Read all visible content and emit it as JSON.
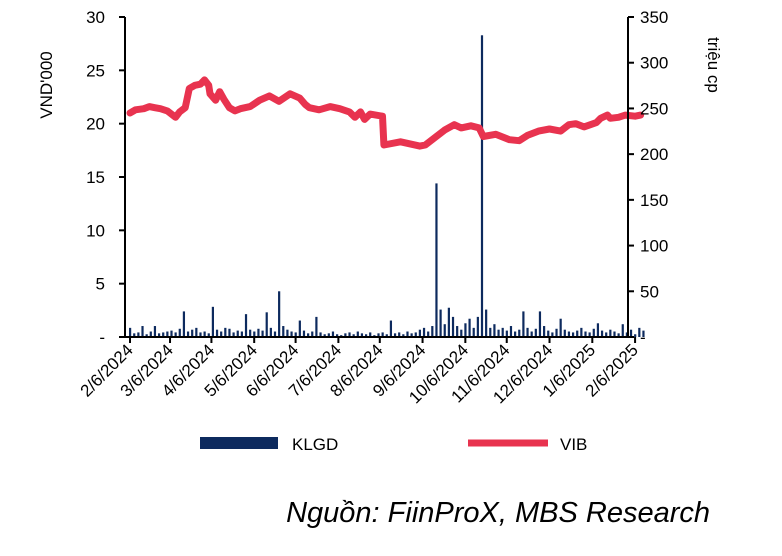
{
  "chart_data": {
    "type": "bar+line",
    "title": "",
    "source": "Nguồn: FiinProX, MBS Research",
    "x_start_date": "2/6/2024",
    "x_unit": "days since 2/6/2024",
    "xtick_days": [
      0,
      29,
      59,
      90,
      120,
      151,
      181,
      212,
      243,
      273,
      304,
      335,
      366
    ],
    "xtick_labels": [
      "2/6/2024",
      "3/6/2024",
      "4/6/2024",
      "5/6/2024",
      "6/6/2024",
      "7/6/2024",
      "8/6/2024",
      "9/6/2024",
      "10/6/2024",
      "11/6/2024",
      "12/6/2024",
      "1/6/2025",
      "2/6/2025"
    ],
    "xlim": [
      0,
      372
    ],
    "y_left": {
      "label": "VND'000",
      "lim": [
        0,
        30
      ],
      "ticks": [
        0,
        5,
        10,
        15,
        20,
        25,
        30
      ],
      "tick_labels": [
        "-",
        "5",
        "10",
        "15",
        "20",
        "25",
        "30"
      ]
    },
    "y_right": {
      "label": "triệu cp",
      "lim": [
        0,
        350
      ],
      "ticks": [
        0,
        50,
        100,
        150,
        200,
        250,
        300,
        350
      ],
      "tick_labels": [
        "-",
        "50",
        "100",
        "150",
        "200",
        "250",
        "300",
        "350"
      ]
    },
    "legend": {
      "placement": "bottom",
      "entries": [
        "KLGD",
        "VIB"
      ]
    },
    "series": [
      {
        "name": "KLGD",
        "type": "bar",
        "axis": "right",
        "color": "#0d2a5e",
        "x_step_days": 3,
        "values": [
          10,
          4,
          5,
          12,
          3,
          6,
          12,
          4,
          5,
          6,
          7,
          5,
          9,
          28,
          6,
          8,
          10,
          5,
          6,
          4,
          33,
          8,
          6,
          10,
          9,
          5,
          7,
          6,
          25,
          8,
          6,
          9,
          7,
          27,
          10,
          6,
          50,
          12,
          8,
          6,
          5,
          18,
          7,
          4,
          6,
          22,
          5,
          3,
          4,
          6,
          3,
          2,
          4,
          5,
          3,
          6,
          4,
          3,
          5,
          2,
          4,
          5,
          3,
          18,
          4,
          5,
          3,
          6,
          4,
          5,
          8,
          10,
          6,
          12,
          168,
          30,
          14,
          32,
          22,
          12,
          8,
          15,
          20,
          10,
          22,
          330,
          30,
          10,
          14,
          8,
          10,
          7,
          12,
          6,
          8,
          28,
          10,
          6,
          9,
          28,
          12,
          7,
          5,
          9,
          20,
          8,
          6,
          5,
          7,
          10,
          6,
          5,
          9,
          15,
          7,
          5,
          8,
          6,
          4,
          14,
          5,
          8,
          3,
          10,
          7
        ]
      },
      {
        "name": "VIB",
        "type": "line",
        "axis": "left",
        "color": "#e8334f",
        "points": [
          [
            0,
            21.0
          ],
          [
            4,
            21.3
          ],
          [
            10,
            21.4
          ],
          [
            14,
            21.6
          ],
          [
            18,
            21.5
          ],
          [
            22,
            21.4
          ],
          [
            27,
            21.2
          ],
          [
            33,
            20.6
          ],
          [
            36,
            21.1
          ],
          [
            40,
            21.5
          ],
          [
            43,
            23.3
          ],
          [
            47,
            23.6
          ],
          [
            51,
            23.7
          ],
          [
            54,
            24.1
          ],
          [
            57,
            23.6
          ],
          [
            58,
            22.8
          ],
          [
            62,
            22.2
          ],
          [
            65,
            23.0
          ],
          [
            68,
            22.3
          ],
          [
            72,
            21.5
          ],
          [
            76,
            21.2
          ],
          [
            80,
            21.4
          ],
          [
            87,
            21.6
          ],
          [
            94,
            22.2
          ],
          [
            101,
            22.6
          ],
          [
            108,
            22.1
          ],
          [
            116,
            22.8
          ],
          [
            123,
            22.4
          ],
          [
            127,
            21.8
          ],
          [
            130,
            21.5
          ],
          [
            137,
            21.3
          ],
          [
            145,
            21.6
          ],
          [
            152,
            21.4
          ],
          [
            159,
            21.1
          ],
          [
            163,
            20.6
          ],
          [
            167,
            21.1
          ],
          [
            170,
            20.4
          ],
          [
            174,
            20.9
          ],
          [
            183,
            20.7
          ],
          [
            184,
            18.0
          ],
          [
            196,
            18.3
          ],
          [
            210,
            17.9
          ],
          [
            214,
            18.0
          ],
          [
            221,
            18.7
          ],
          [
            228,
            19.4
          ],
          [
            235,
            19.9
          ],
          [
            240,
            19.6
          ],
          [
            247,
            19.8
          ],
          [
            253,
            19.6
          ],
          [
            256,
            18.8
          ],
          [
            265,
            19.0
          ],
          [
            275,
            18.5
          ],
          [
            282,
            18.4
          ],
          [
            288,
            18.9
          ],
          [
            296,
            19.3
          ],
          [
            304,
            19.5
          ],
          [
            312,
            19.3
          ],
          [
            318,
            19.9
          ],
          [
            323,
            20.0
          ],
          [
            329,
            19.7
          ],
          [
            338,
            20.1
          ],
          [
            341,
            20.5
          ],
          [
            346,
            20.8
          ],
          [
            348,
            20.5
          ],
          [
            354,
            20.6
          ],
          [
            359,
            20.8
          ],
          [
            366,
            20.7
          ],
          [
            370,
            20.8
          ]
        ]
      }
    ]
  }
}
